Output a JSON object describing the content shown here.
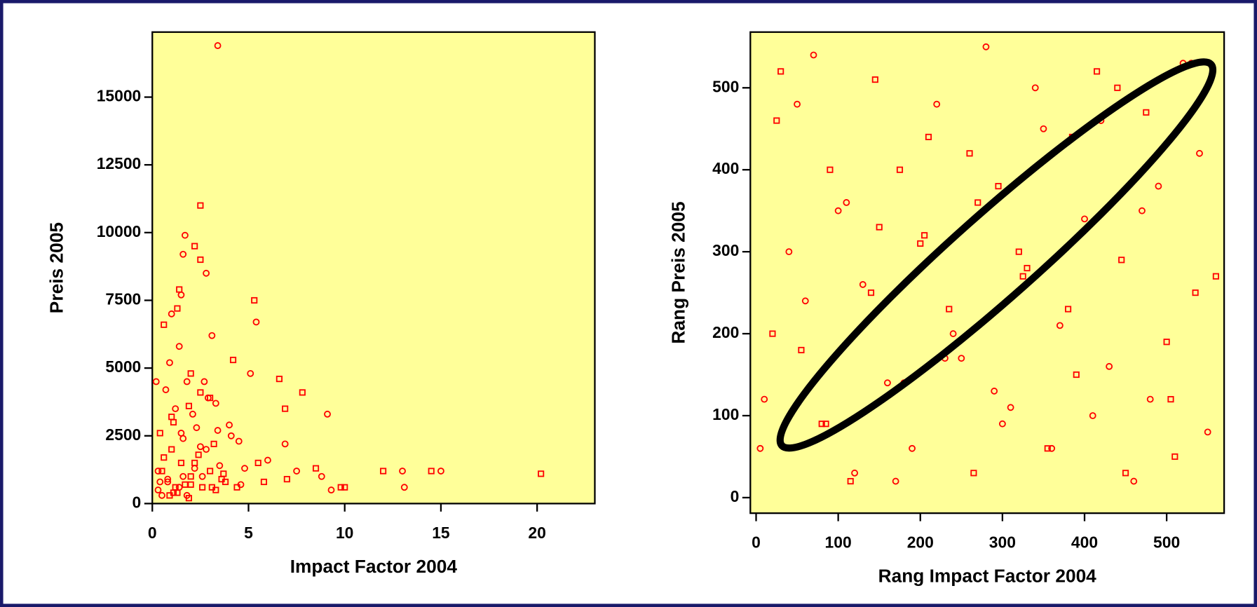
{
  "chart_data": [
    {
      "type": "scatter",
      "xlabel": "Impact Factor 2004",
      "ylabel": "Preis 2005",
      "color": "#ff0000",
      "background": "#ffff99",
      "xlim": [
        0,
        23
      ],
      "ylim": [
        0,
        17400
      ],
      "xticks": [
        0,
        5,
        10,
        15,
        20
      ],
      "yticks": [
        0,
        2500,
        5000,
        7500,
        10000,
        12500,
        15000
      ],
      "x": [
        3.4,
        2.5,
        1.7,
        2.2,
        1.6,
        2.5,
        2.8,
        1.4,
        1.5,
        5.3,
        5.4,
        0.6,
        1.0,
        1.3,
        3.1,
        6.6,
        5.1,
        7.8,
        9.1,
        6.9,
        6.9,
        12.0,
        13.0,
        14.5,
        15.0,
        20.2,
        13.1,
        9.8,
        9.3,
        8.5,
        7.5,
        4.2,
        4.5,
        5.5,
        6.0,
        10.0,
        8.8,
        7.0,
        0.3,
        0.5,
        0.8,
        1.0,
        1.2,
        1.5,
        1.8,
        2.0,
        2.3,
        2.6,
        2.9,
        3.2,
        3.5,
        3.8,
        4.1,
        0.4,
        0.7,
        1.1,
        1.4,
        1.7,
        2.1,
        2.4,
        2.7,
        3.0,
        3.3,
        3.6,
        4.0,
        4.4,
        0.2,
        0.6,
        0.9,
        1.3,
        1.6,
        1.9,
        2.2,
        2.5,
        2.8,
        3.1,
        3.4,
        3.7,
        0.5,
        1.0,
        1.5,
        2.0,
        2.5,
        3.0,
        0.8,
        1.2,
        1.8,
        2.2,
        0.4,
        1.1,
        1.6,
        2.0,
        0.3,
        0.9,
        1.4,
        1.9,
        2.6,
        3.3,
        4.8,
        5.8,
        4.6
      ],
      "y": [
        16900,
        11000,
        9900,
        9500,
        9200,
        9000,
        8500,
        7900,
        7700,
        7500,
        6700,
        6600,
        7000,
        7200,
        6200,
        4600,
        4800,
        4100,
        3300,
        3500,
        2200,
        1200,
        1200,
        1200,
        1200,
        1100,
        600,
        600,
        500,
        1300,
        1200,
        5300,
        2300,
        1500,
        1600,
        600,
        1000,
        900,
        500,
        1200,
        800,
        2000,
        3500,
        1500,
        4500,
        1000,
        2800,
        600,
        3900,
        2200,
        1400,
        800,
        2500,
        2600,
        4200,
        3000,
        5800,
        700,
        3300,
        1800,
        4500,
        1200,
        3700,
        900,
        2900,
        600,
        4500,
        1700,
        5200,
        400,
        2400,
        3600,
        1300,
        4100,
        2000,
        600,
        2700,
        1100,
        300,
        3200,
        2600,
        4800,
        2100,
        3900,
        900,
        600,
        300,
        1500,
        800,
        400,
        1000,
        700,
        1200,
        300,
        600,
        200,
        1000,
        500,
        1300,
        800,
        700
      ]
    },
    {
      "type": "scatter",
      "xlabel": "Rang Impact Factor 2004",
      "ylabel": "Rang Preis 2005",
      "color": "#ff0000",
      "background": "#ffff99",
      "xlim": [
        -7,
        570
      ],
      "ylim": [
        -19,
        568
      ],
      "xticks": [
        0,
        100,
        200,
        300,
        400,
        500
      ],
      "yticks": [
        0,
        100,
        200,
        300,
        400,
        500
      ],
      "x": [
        10,
        25,
        40,
        55,
        70,
        85,
        100,
        115,
        130,
        145,
        160,
        175,
        190,
        205,
        220,
        235,
        250,
        265,
        280,
        295,
        310,
        325,
        340,
        355,
        370,
        385,
        400,
        415,
        430,
        445,
        460,
        475,
        490,
        505,
        520,
        535,
        550,
        560,
        5,
        30,
        60,
        90,
        120,
        150,
        180,
        210,
        240,
        270,
        300,
        330,
        360,
        390,
        420,
        450,
        480,
        510,
        540,
        20,
        50,
        80,
        110,
        140,
        170,
        200,
        230,
        260,
        290,
        320,
        350,
        380,
        410,
        440,
        470,
        500,
        530
      ],
      "y": [
        120,
        460,
        300,
        180,
        540,
        90,
        350,
        20,
        260,
        510,
        140,
        400,
        60,
        320,
        480,
        230,
        170,
        30,
        550,
        380,
        110,
        270,
        500,
        60,
        210,
        440,
        340,
        520,
        160,
        290,
        20,
        470,
        380,
        120,
        530,
        250,
        80,
        270,
        60,
        520,
        240,
        400,
        30,
        330,
        140,
        440,
        200,
        360,
        90,
        280,
        60,
        150,
        460,
        30,
        120,
        50,
        420,
        200,
        480,
        90,
        360,
        250,
        20,
        310,
        170,
        420,
        130,
        300,
        450,
        230,
        100,
        500,
        350,
        190,
        530
      ]
    }
  ]
}
